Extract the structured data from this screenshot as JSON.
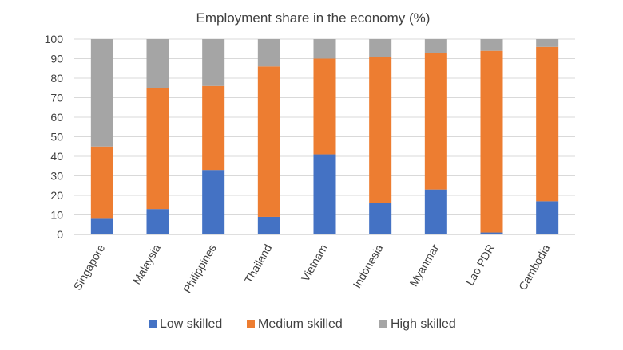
{
  "chart_data": {
    "type": "bar",
    "stacked": true,
    "title": "Employment  share in the economy (%)",
    "xlabel": "",
    "ylabel": "",
    "ylim": [
      0,
      100
    ],
    "yticks": [
      0,
      10,
      20,
      30,
      40,
      50,
      60,
      70,
      80,
      90,
      100
    ],
    "grid": true,
    "legend_position": "bottom",
    "categories": [
      "Singapore",
      "Malaysia",
      "Philippines",
      "Thailand",
      "Vietnam",
      "Indonesia",
      "Myanmar",
      "Lao PDR",
      "Cambodia"
    ],
    "series": [
      {
        "name": "Low skilled",
        "color": "#4472C4",
        "values": [
          8,
          13,
          33,
          9,
          41,
          16,
          23,
          1,
          17
        ]
      },
      {
        "name": "Medium skilled",
        "color": "#ED7D31",
        "values": [
          37,
          62,
          43,
          77,
          49,
          75,
          70,
          93,
          79
        ]
      },
      {
        "name": "High skilled",
        "color": "#A5A5A5",
        "values": [
          55,
          25,
          24,
          14,
          10,
          9,
          7,
          6,
          4
        ]
      }
    ]
  }
}
